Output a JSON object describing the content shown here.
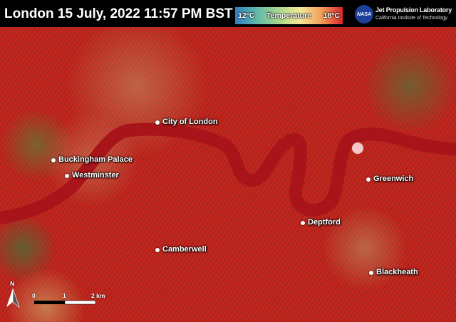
{
  "header": {
    "title": "London 15 July, 2022 11:57 PM BST"
  },
  "legend": {
    "min": "12°C",
    "label": "Temperature",
    "max": "18°C",
    "colors": [
      "#2f7fc0",
      "#b9dc8a",
      "#f5e89a",
      "#d8262a"
    ]
  },
  "logo": {
    "nasa": "NASA",
    "org": "Jet Propulsion Laboratory",
    "sub": "California Institute of Technology"
  },
  "places": [
    "City of London",
    "Buckingham Palace",
    "Westminster",
    "Greenwich",
    "Deptford",
    "Camberwell",
    "Blackheath"
  ],
  "scale": {
    "north": "N",
    "t0": "0",
    "t1": "1",
    "t2": "2 km"
  }
}
